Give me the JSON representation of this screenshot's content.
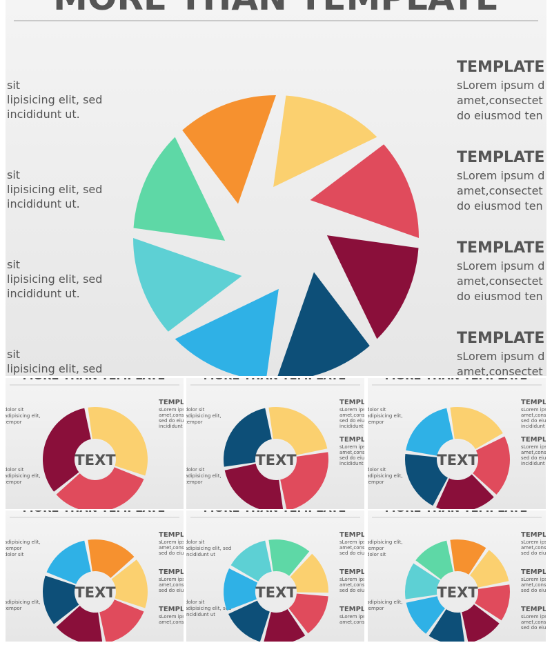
{
  "main": {
    "title": "MORE THAN TEMPLATE",
    "left_blocks": [
      [
        "sit",
        "lipisicing elit, sed",
        "incididunt ut."
      ],
      [
        "sit",
        "lipisicing elit, sed",
        "incididunt ut."
      ],
      [
        "sit",
        "lipisicing elit, sed",
        "incididunt ut."
      ],
      [
        "sit",
        "lipisicing elit, sed"
      ]
    ],
    "right_blocks": [
      {
        "heading": "TEMPLATE",
        "lines": [
          "sLorem ipsum d",
          "amet,consectet",
          "do eiusmod ten"
        ]
      },
      {
        "heading": "TEMPLATE",
        "lines": [
          "sLorem ipsum d",
          "amet,consectet",
          "do eiusmod ten"
        ]
      },
      {
        "heading": "TEMPLATE",
        "lines": [
          "sLorem ipsum d",
          "amet,consectet",
          "do eiusmod ten"
        ]
      },
      {
        "heading": "TEMPLATE",
        "lines": [
          "sLorem ipsum d",
          "amet,consectet"
        ]
      }
    ]
  },
  "thumbnails": [
    {
      "title": "MORE THAN TEMPLATE",
      "center": "TEXT",
      "left": [
        "dolor sit",
        "adipisicing elit,",
        "tempor",
        "dolor sit",
        "adipisicing elit,",
        "tempor"
      ],
      "right": [
        {
          "heading": "TEMPLATE",
          "lines": [
            "sLorem ipsum",
            "amet,consect",
            "sed do eiusmod",
            "incididunt ut"
          ]
        }
      ]
    },
    {
      "title": "MORE THAN TEMPLATE",
      "center": "TEXT",
      "left": [
        "dolor sit",
        "adipisicing elit,",
        "tempor",
        "dolor sit",
        "adipisicing elit,",
        "tempor"
      ],
      "right": [
        {
          "heading": "TEMPLATE",
          "lines": [
            "sLorem ipsum",
            "amet,consect",
            "sed do eiusmod",
            "incididunt ut"
          ]
        },
        {
          "heading": "TEMPLATE",
          "lines": [
            "sLorem ipsum",
            "amet,consect",
            "sed do eiusmod",
            "incididunt ut"
          ]
        }
      ]
    },
    {
      "title": "MORE THAN TEMPLATE",
      "center": "TEXT",
      "left": [
        "dolor sit",
        "adipisicing elit,",
        "tempor",
        "dolor sit",
        "adipisicing elit,",
        "tempor"
      ],
      "right": [
        {
          "heading": "TEMPLATE",
          "lines": [
            "sLorem ipsum",
            "amet,consect",
            "sed do eiusmod",
            "incididunt ut"
          ]
        },
        {
          "heading": "TEMPLATE",
          "lines": [
            "sLorem ipsum",
            "amet,consect",
            "sed do eiusmod",
            "incididunt ut"
          ]
        }
      ]
    },
    {
      "title": "MORE THAN TEMPLATE",
      "center": "TEXT",
      "left": [
        "adipisicing elit,",
        "tempor",
        "dolor sit",
        "adipisicing elit,",
        "tempor"
      ],
      "right": [
        {
          "heading": "TEMPLATE",
          "lines": [
            "sLorem ipsum",
            "amet,consect",
            "sed do eiusmod"
          ]
        },
        {
          "heading": "TEMPLATE",
          "lines": [
            "sLorem ipsum",
            "amet,consect",
            "sed do eiusmod"
          ]
        },
        {
          "heading": "TEMPLATE",
          "lines": [
            "sLorem ipsum",
            "amet,consect"
          ]
        }
      ]
    },
    {
      "title": "MORE THAN TEMPLATE",
      "center": "TEXT",
      "left": [
        "dolor sit",
        "adipisicing elit, sed",
        "incididunt ut",
        "dolor sit",
        "adipisicing elit, sed",
        "incididunt ut"
      ],
      "right": [
        {
          "heading": "TEMPLATE",
          "lines": [
            "sLorem ipsum",
            "amet,consect",
            "sed do eiusmod"
          ]
        },
        {
          "heading": "TEMPLATE",
          "lines": [
            "sLorem ipsum",
            "amet,consect",
            "sed do eiusmod"
          ]
        },
        {
          "heading": "TEMPLATE",
          "lines": [
            "sLorem ipsum",
            "amet,consect"
          ]
        }
      ]
    },
    {
      "title": "MORE THAN TEMPLATE",
      "center": "TEXT",
      "left": [
        "adipisicing elit,",
        "tempor",
        "dolor sit",
        "adipisicing elit,",
        "tempor"
      ],
      "right": [
        {
          "heading": "TEMPLATE",
          "lines": [
            "sLorem ipsum",
            "amet,consect",
            "sed do eiusmod"
          ]
        },
        {
          "heading": "TEMPLATE",
          "lines": [
            "sLorem ipsum",
            "amet,consect",
            "sed do eiusmod"
          ]
        },
        {
          "heading": "TEMPLATE",
          "lines": [
            "sLorem ipsum",
            "amet,consect",
            "sed do eiusmod"
          ]
        },
        {
          "heading": "TEMPLATE",
          "lines": [
            "sLorem ipsum"
          ]
        }
      ]
    }
  ]
}
